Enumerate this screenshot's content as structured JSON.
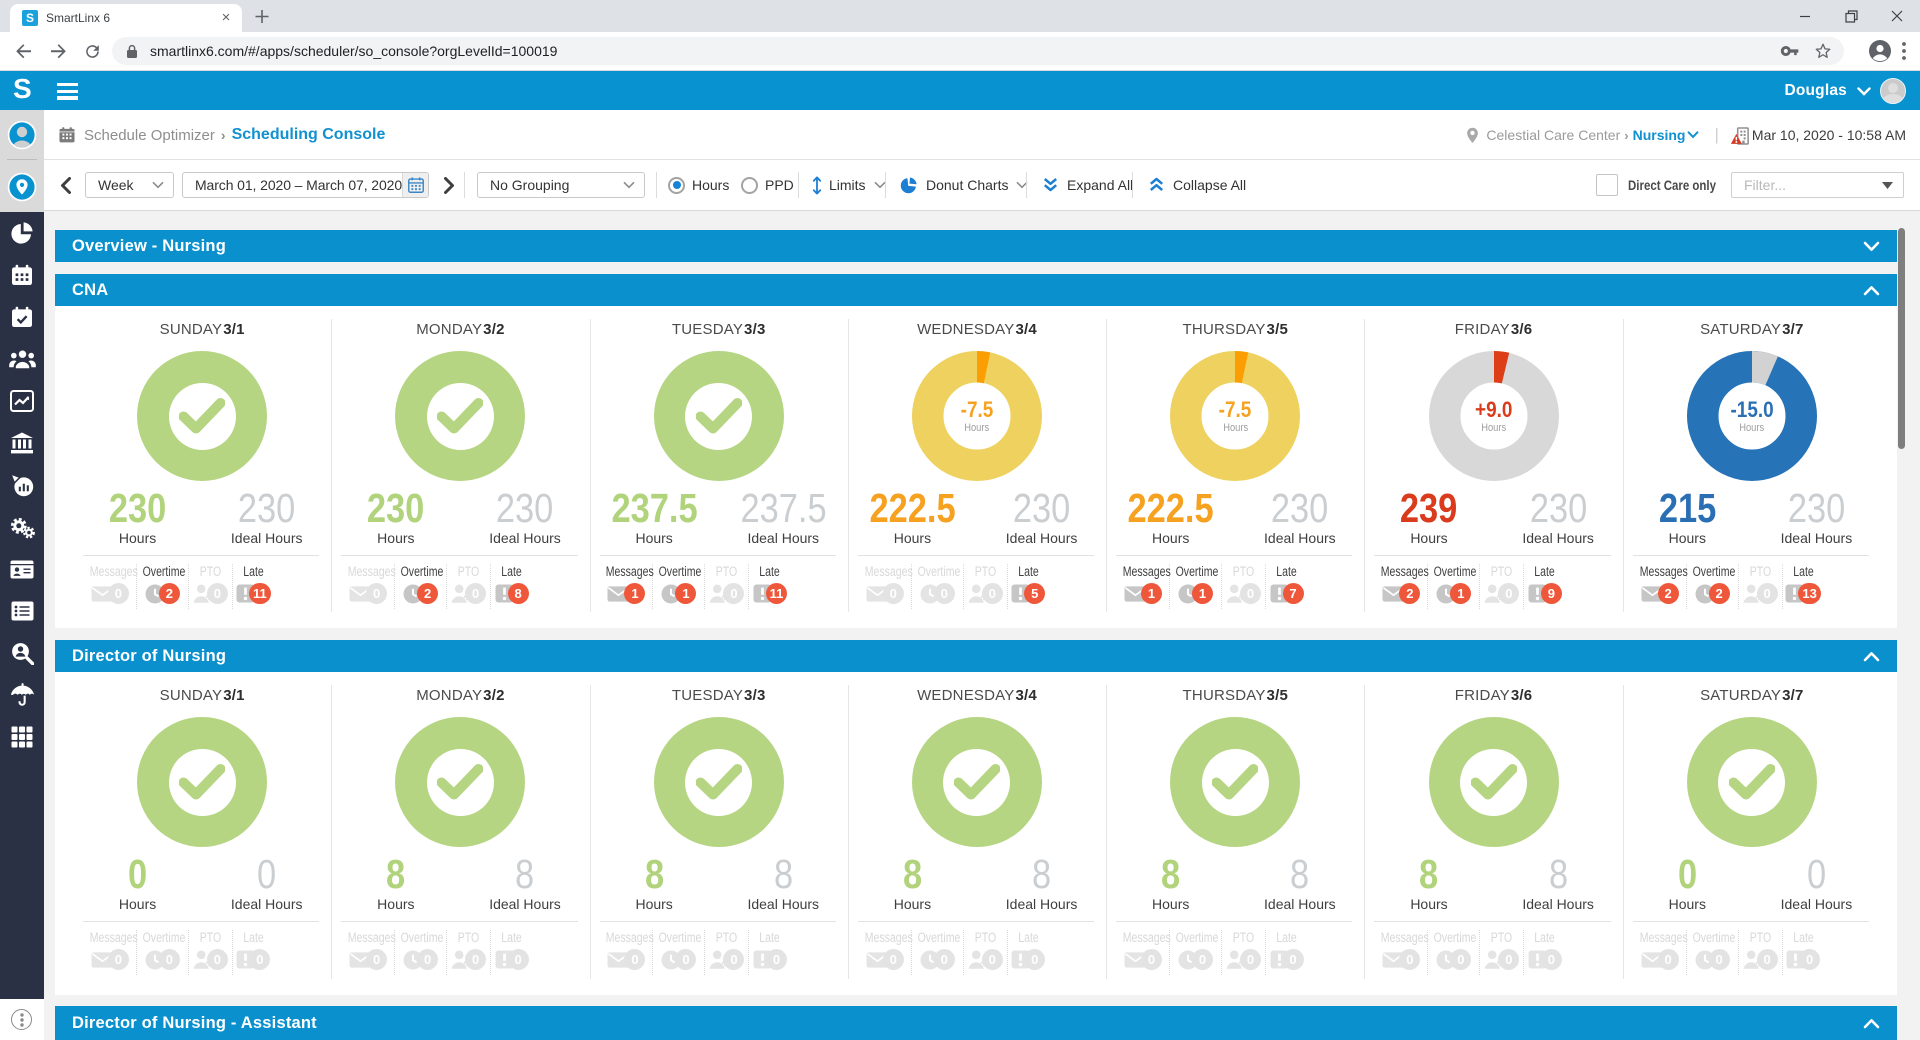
{
  "browser": {
    "tab_title": "SmartLinx 6",
    "favicon_letter": "S",
    "url": "smartlinx6.com/#/apps/scheduler/so_console?orgLevelId=100019"
  },
  "header": {
    "logo_letter": "S",
    "user_name": "Douglas"
  },
  "breadcrumb": {
    "section": "Schedule Optimizer",
    "page": "Scheduling Console",
    "org": "Celestial Care Center",
    "department": "Nursing",
    "datetime": "Mar 10, 2020 - 10:58 AM"
  },
  "toolbar": {
    "period": "Week",
    "date_range": "March 01, 2020 – March 07, 2020",
    "grouping": "No Grouping",
    "radio_hours_label": "Hours",
    "radio_ppd_label": "PPD",
    "limits_label": "Limits",
    "donut_charts_label": "Donut Charts",
    "expand_all_label": "Expand All",
    "collapse_all_label": "Collapse All",
    "direct_care_label": "Direct Care only",
    "filter_placeholder": "Filter..."
  },
  "labels": {
    "hours": "Hours",
    "ideal_hours": "Ideal Hours",
    "messages": "Messages",
    "overtime": "Overtime",
    "pto": "PTO",
    "late": "Late"
  },
  "colors": {
    "app_blue": "#0992d0",
    "bar_blue": "#0b90ce",
    "green": "#b5d583",
    "yellow": "#eed15f",
    "orange_slice": "#fb9e04",
    "orange_text": "#f6a11f",
    "grey_donut": "#d8d8d8",
    "red_slice": "#dd3e17",
    "red_text": "#d93b1c",
    "blue_donut": "#2673b7",
    "blue_slice": "#d2d2d2",
    "blue_text": "#2a6fb4",
    "badge_red": "#ef573b",
    "sidebar_navy": "#2b3144"
  },
  "chart_data": [
    {
      "type": "donut-summary-row",
      "section": "CNA",
      "days": [
        {
          "weekday": "SUNDAY",
          "date": "3/1",
          "status": "ok",
          "hours": "230",
          "ideal": "230",
          "delta": null
        },
        {
          "weekday": "MONDAY",
          "date": "3/2",
          "status": "ok",
          "hours": "230",
          "ideal": "230",
          "delta": null
        },
        {
          "weekday": "TUESDAY",
          "date": "3/3",
          "status": "ok",
          "hours": "237.5",
          "ideal": "237.5",
          "delta": null
        },
        {
          "weekday": "WEDNESDAY",
          "date": "3/4",
          "status": "under",
          "hours": "222.5",
          "ideal": "230",
          "delta": "-7.5"
        },
        {
          "weekday": "THURSDAY",
          "date": "3/5",
          "status": "under",
          "hours": "222.5",
          "ideal": "230",
          "delta": "-7.5"
        },
        {
          "weekday": "FRIDAY",
          "date": "3/6",
          "status": "over",
          "hours": "239",
          "ideal": "230",
          "delta": "+9.0"
        },
        {
          "weekday": "SATURDAY",
          "date": "3/7",
          "status": "short",
          "hours": "215",
          "ideal": "230",
          "delta": "-15.0"
        }
      ]
    },
    {
      "type": "donut-summary-row",
      "section": "Director of Nursing",
      "days": [
        {
          "weekday": "SUNDAY",
          "date": "3/1",
          "status": "ok",
          "hours": "0",
          "ideal": "0",
          "delta": null
        },
        {
          "weekday": "MONDAY",
          "date": "3/2",
          "status": "ok",
          "hours": "8",
          "ideal": "8",
          "delta": null
        },
        {
          "weekday": "TUESDAY",
          "date": "3/3",
          "status": "ok",
          "hours": "8",
          "ideal": "8",
          "delta": null
        },
        {
          "weekday": "WEDNESDAY",
          "date": "3/4",
          "status": "ok",
          "hours": "8",
          "ideal": "8",
          "delta": null
        },
        {
          "weekday": "THURSDAY",
          "date": "3/5",
          "status": "ok",
          "hours": "8",
          "ideal": "8",
          "delta": null
        },
        {
          "weekday": "FRIDAY",
          "date": "3/6",
          "status": "ok",
          "hours": "8",
          "ideal": "8",
          "delta": null
        },
        {
          "weekday": "SATURDAY",
          "date": "3/7",
          "status": "ok",
          "hours": "0",
          "ideal": "0",
          "delta": null
        }
      ]
    }
  ],
  "sections": {
    "overview": {
      "title": "Overview - Nursing",
      "collapsed": true
    },
    "cna": {
      "title": "CNA",
      "stats": [
        {
          "messages": 0,
          "overtime": 2,
          "pto": 0,
          "late": 11
        },
        {
          "messages": 0,
          "overtime": 2,
          "pto": 0,
          "late": 8
        },
        {
          "messages": 1,
          "overtime": 1,
          "pto": 0,
          "late": 11
        },
        {
          "messages": 0,
          "overtime": 0,
          "pto": 0,
          "late": 5
        },
        {
          "messages": 1,
          "overtime": 1,
          "pto": 0,
          "late": 7
        },
        {
          "messages": 2,
          "overtime": 1,
          "pto": 0,
          "late": 9
        },
        {
          "messages": 2,
          "overtime": 2,
          "pto": 0,
          "late": 13
        }
      ]
    },
    "don": {
      "title": "Director of Nursing",
      "stats": [
        {
          "messages": 0,
          "overtime": 0,
          "pto": 0,
          "late": 0
        },
        {
          "messages": 0,
          "overtime": 0,
          "pto": 0,
          "late": 0
        },
        {
          "messages": 0,
          "overtime": 0,
          "pto": 0,
          "late": 0
        },
        {
          "messages": 0,
          "overtime": 0,
          "pto": 0,
          "late": 0
        },
        {
          "messages": 0,
          "overtime": 0,
          "pto": 0,
          "late": 0
        },
        {
          "messages": 0,
          "overtime": 0,
          "pto": 0,
          "late": 0
        },
        {
          "messages": 0,
          "overtime": 0,
          "pto": 0,
          "late": 0
        }
      ]
    },
    "don_assistant": {
      "title": "Director of Nursing - Assistant",
      "collapsed": false
    }
  }
}
